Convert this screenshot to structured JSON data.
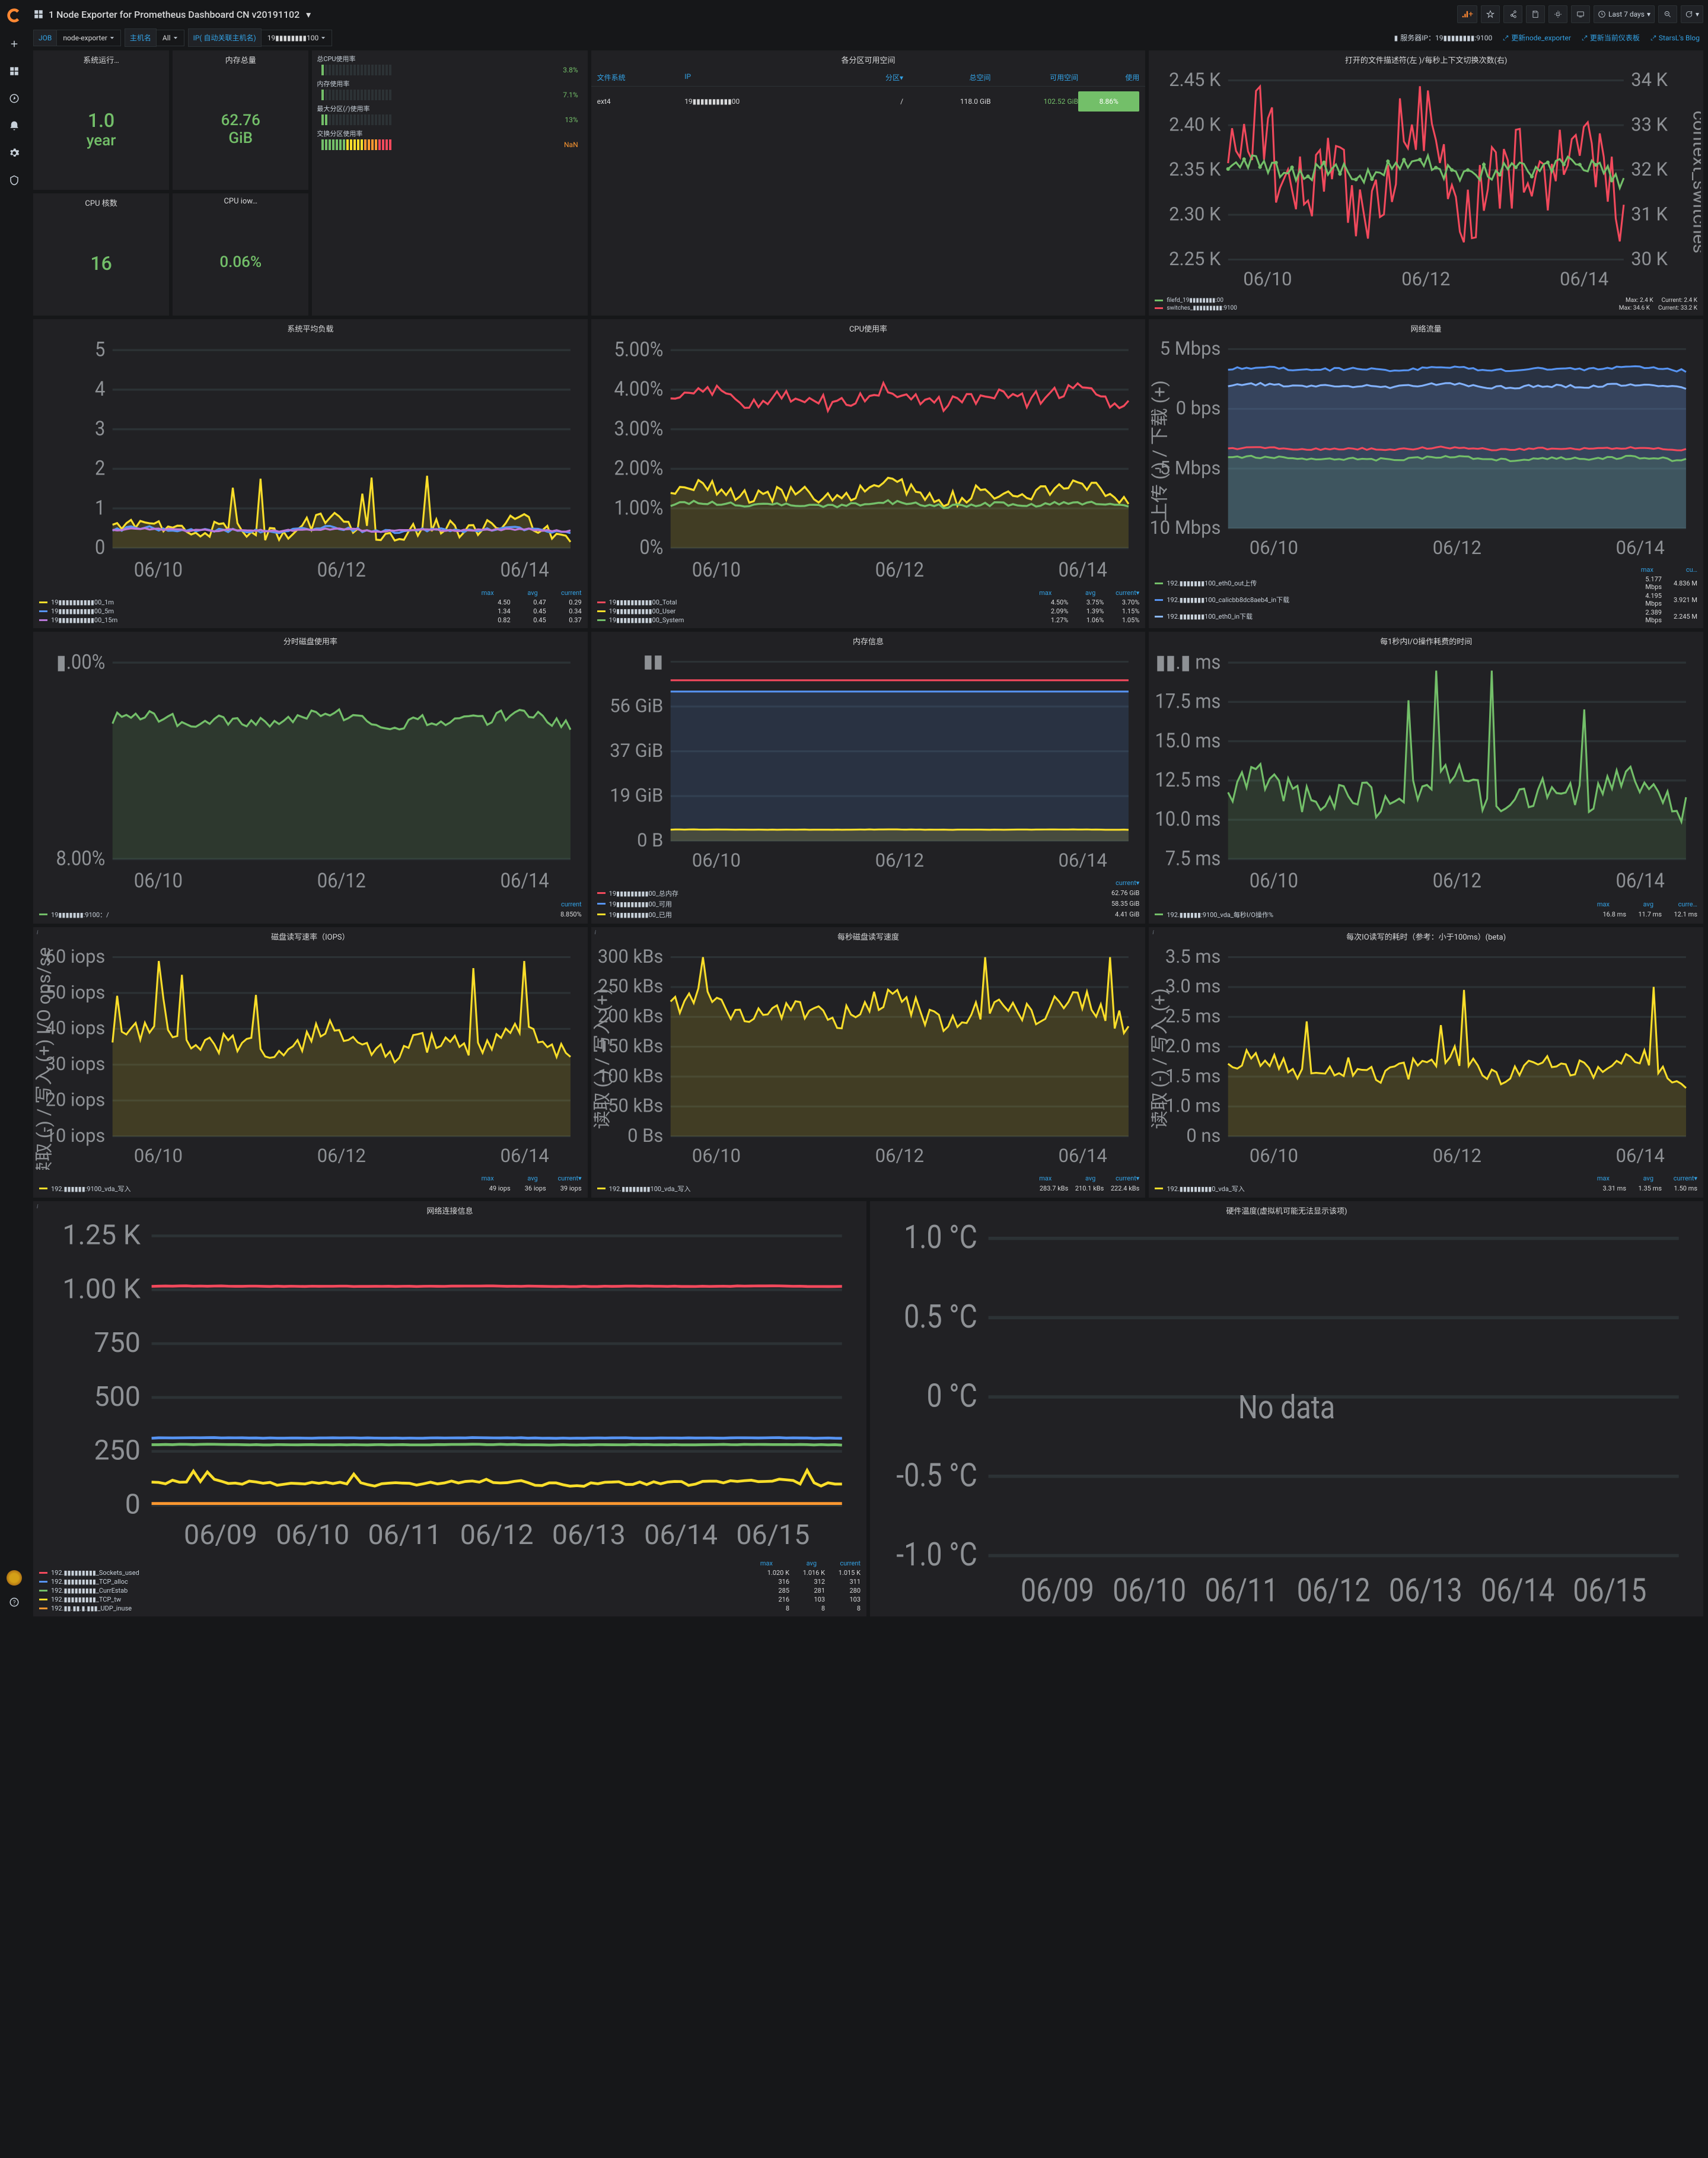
{
  "header": {
    "title": "1 Node Exporter for Prometheus Dashboard CN v20191102",
    "timeRange": "Last 7 days"
  },
  "vars": {
    "job": {
      "label": "JOB",
      "value": "node-exporter"
    },
    "host": {
      "label": "主机名",
      "value": "All"
    },
    "ip": {
      "label": "IP( 自动关联主机名)",
      "value": "19▮▮▮▮▮▮▮▮100"
    }
  },
  "links": {
    "serverIp": "服务器IP：19▮▮▮▮▮▮▮▮:9100",
    "l1": "更新node_exporter",
    "l2": "更新当前仪表板",
    "l3": "StarsL's Blog"
  },
  "stats": {
    "uptime": {
      "title": "系统运行…",
      "value": "1.0",
      "unit": "year"
    },
    "mem": {
      "title": "内存总量",
      "value": "62.76",
      "unit": "GiB"
    },
    "cpu": {
      "title": "CPU 核数",
      "value": "16"
    },
    "iowait": {
      "title": "CPU iow…",
      "value": "0.06%"
    }
  },
  "bargauges": [
    {
      "label": "总CPU使用率",
      "value": "3.8%",
      "fill": 1,
      "color": "green"
    },
    {
      "label": "内存使用率",
      "value": "7.1%",
      "fill": 1,
      "color": "green"
    },
    {
      "label": "最大分区(/)使用率",
      "value": "13%",
      "fill": 2,
      "color": "green"
    },
    {
      "label": "交换分区使用率",
      "value": "NaN",
      "fill": 20,
      "color": "multi"
    }
  ],
  "diskTable": {
    "title": "各分区可用空间",
    "headers": [
      "文件系统",
      "IP",
      "分区▾",
      "总空间",
      "可用空间",
      "使用"
    ],
    "row": {
      "fs": "ext4",
      "ip": "19▮▮▮▮▮▮▮▮▮▮00",
      "mount": "/",
      "total": "118.0 GiB",
      "avail": "102.52 GiB",
      "used": "8.86%"
    }
  },
  "fdPanel": {
    "title": "打开的文件描述符(左 )/每秒上下文切换次数(右)",
    "yleft": [
      "2.45 K",
      "2.40 K",
      "2.35 K",
      "2.30 K",
      "2.25 K"
    ],
    "yright": [
      "34 K",
      "33 K",
      "32 K",
      "31 K",
      "30 K"
    ],
    "xticks": [
      "06/10",
      "06/12",
      "06/14"
    ],
    "rightLabel": "context_switches",
    "legend": [
      {
        "c": "#73bf69",
        "name": "filefd_19▮▮▮▮▮▮▮▮:00",
        "max": "Max: 2.4 K",
        "cur": "Current: 2.4 K"
      },
      {
        "c": "#f2495c",
        "name": "switches_▮▮▮▮▮▮▮▮▮:9100",
        "max": "Max: 34.6 K",
        "cur": "Current: 33.2 K"
      }
    ]
  },
  "loadPanel": {
    "title": "系统平均负载",
    "yticks": [
      "5",
      "4",
      "3",
      "2",
      "1",
      "0"
    ],
    "xticks": [
      "06/10",
      "06/12",
      "06/14"
    ],
    "legend": [
      {
        "c": "#fade2a",
        "name": "19▮▮▮▮▮▮▮▮▮▮00_1m",
        "max": "4.50",
        "avg": "0.47",
        "cur": "0.29"
      },
      {
        "c": "#5794f2",
        "name": "19▮▮▮▮▮▮▮▮▮▮00_5m",
        "max": "1.34",
        "avg": "0.45",
        "cur": "0.34"
      },
      {
        "c": "#b877d9",
        "name": "19▮▮▮▮▮▮▮▮▮▮00_15m",
        "max": "0.82",
        "avg": "0.45",
        "cur": "0.37"
      }
    ]
  },
  "cpuPanel": {
    "title": "CPU使用率",
    "yticks": [
      "5.00%",
      "4.00%",
      "3.00%",
      "2.00%",
      "1.00%",
      "0%"
    ],
    "xticks": [
      "06/10",
      "06/12",
      "06/14"
    ],
    "legend": [
      {
        "c": "#f2495c",
        "name": "19▮▮▮▮▮▮▮▮▮▮00_Total",
        "max": "4.50%",
        "avg": "3.75%",
        "cur": "3.70%"
      },
      {
        "c": "#fade2a",
        "name": "19▮▮▮▮▮▮▮▮▮▮00_User",
        "max": "2.09%",
        "avg": "1.39%",
        "cur": "1.15%"
      },
      {
        "c": "#73bf69",
        "name": "19▮▮▮▮▮▮▮▮▮▮00_System",
        "max": "1.27%",
        "avg": "1.06%",
        "cur": "1.05%"
      }
    ]
  },
  "netPanel": {
    "title": "网络流量",
    "yticks": [
      "5 Mbps",
      "0 bps",
      "-5 Mbps",
      "-10 Mbps"
    ],
    "xticks": [
      "06/10",
      "06/12",
      "06/14"
    ],
    "ylabel": "上传 (-) / 下载 (+)",
    "legend": [
      {
        "c": "#73bf69",
        "name": "192.▮▮▮▮▮▮▮100_eth0_out上传",
        "max": "5.177 Mbps",
        "cur": "4.836 M"
      },
      {
        "c": "#5794f2",
        "name": "192.▮▮▮▮▮▮▮100_calicbb8dc8aeb4_in下载",
        "max": "4.195 Mbps",
        "cur": "3.921 M"
      },
      {
        "c": "#8ab8ff",
        "name": "192.▮▮▮▮▮▮▮100_eth0_in下载",
        "max": "2.389 Mbps",
        "cur": "2.245 M"
      }
    ]
  },
  "diskUsage": {
    "title": "分时磁盘使用率",
    "yticks": [
      "▮.00%",
      "8.00%"
    ],
    "xticks": [
      "06/10",
      "06/12",
      "06/14"
    ],
    "legend": [
      {
        "c": "#73bf69",
        "name": "19▮▮▮▮▮▮▮:9100：/",
        "cur": "8.850%"
      }
    ]
  },
  "memInfo": {
    "title": "内存信息",
    "yticks": [
      "▮▮",
      "56 GiB",
      "37 GiB",
      "19 GiB",
      "0 B"
    ],
    "xticks": [
      "06/10",
      "06/12",
      "06/14"
    ],
    "legend": [
      {
        "c": "#f2495c",
        "name": "19▮▮▮▮▮▮▮▮▮00_总内存",
        "cur": "62.76 GiB"
      },
      {
        "c": "#5794f2",
        "name": "19▮▮▮▮▮▮▮▮▮00_可用",
        "cur": "58.35 GiB"
      },
      {
        "c": "#fade2a",
        "name": "19▮▮▮▮▮▮▮▮▮00_已用",
        "cur": "4.41 GiB"
      }
    ]
  },
  "ioTime": {
    "title": "每1秒内I/O操作耗费的时间",
    "yticks": [
      "▮▮.▮ ms",
      "17.5 ms",
      "15.0 ms",
      "12.5 ms",
      "10.0 ms",
      "7.5 ms"
    ],
    "xticks": [
      "06/10",
      "06/12",
      "06/14"
    ],
    "legend": [
      {
        "c": "#73bf69",
        "name": "192.▮▮▮▮▮▮:9100_vda_每秒I/O操作%",
        "max": "16.8 ms",
        "avg": "11.7 ms",
        "cur": "12.1 ms"
      }
    ]
  },
  "iops": {
    "title": "磁盘读写速率（IOPS）",
    "yticks": [
      "60 iops",
      "50 iops",
      "40 iops",
      "30 iops",
      "20 iops",
      "10 iops"
    ],
    "xticks": [
      "06/10",
      "06/12",
      "06/14"
    ],
    "ylabel": "读取 (-) / 写入 (+) I/O ops/sec",
    "legend": [
      {
        "c": "#fade2a",
        "name": "192.▮▮▮▮▮▮:9100_vda_写入",
        "max": "49 iops",
        "avg": "36 iops",
        "cur": "39 iops"
      }
    ]
  },
  "diskRW": {
    "title": "每秒磁盘读写速度",
    "yticks": [
      "300 kBs",
      "250 kBs",
      "200 kBs",
      "150 kBs",
      "100 kBs",
      "50 kBs",
      "0 Bs"
    ],
    "xticks": [
      "06/10",
      "06/12",
      "06/14"
    ],
    "ylabel": "读取 (-) / 写入 (+)",
    "legend": [
      {
        "c": "#fade2a",
        "name": "192.▮▮▮▮▮▮▮▮100_vda_写入",
        "max": "283.7 kBs",
        "avg": "210.1 kBs",
        "cur": "222.4 kBs"
      }
    ]
  },
  "ioLatency": {
    "title": "每次IO读写的耗时（参考：小于100ms）(beta)",
    "yticks": [
      "3.5 ms",
      "3.0 ms",
      "2.5 ms",
      "2.0 ms",
      "1.5 ms",
      "1.0 ms",
      "0 ns"
    ],
    "xticks": [
      "06/10",
      "06/12",
      "06/14"
    ],
    "ylabel": "读取 (-) / 写入 (+)",
    "legend": [
      {
        "c": "#fade2a",
        "name": "192.▮▮▮▮▮▮▮▮▮0_vda_写入",
        "max": "3.31 ms",
        "avg": "1.35 ms",
        "cur": "1.50 ms"
      }
    ]
  },
  "netConn": {
    "title": "网络连接信息",
    "yticks": [
      "1.25 K",
      "1.00 K",
      "750",
      "500",
      "250",
      "0"
    ],
    "xticks": [
      "06/09",
      "06/10",
      "06/11",
      "06/12",
      "06/13",
      "06/14",
      "06/15"
    ],
    "legend": [
      {
        "c": "#f2495c",
        "name": "192.▮▮▮▮▮▮▮▮▮_Sockets_used",
        "max": "1.020 K",
        "avg": "1.016 K",
        "cur": "1.015 K"
      },
      {
        "c": "#5794f2",
        "name": "192.▮▮▮▮▮▮▮▮▮_TCP_alloc",
        "max": "316",
        "avg": "312",
        "cur": "311"
      },
      {
        "c": "#73bf69",
        "name": "192.▮▮▮▮▮▮▮▮▮_CurrEstab",
        "max": "285",
        "avg": "281",
        "cur": "280"
      },
      {
        "c": "#fade2a",
        "name": "192.▮▮▮▮▮▮▮▮▮_TCP_tw",
        "max": "216",
        "avg": "103",
        "cur": "103"
      },
      {
        "c": "#ff9830",
        "name": "192.▮▮.▮▮.▮.▮▮▮_UDP_inuse",
        "max": "8",
        "avg": "8",
        "cur": "8"
      }
    ]
  },
  "temp": {
    "title": "硬件温度(虚拟机可能无法显示该项)",
    "yticks": [
      "1.0 °C",
      "0.5 °C",
      "0 °C",
      "-0.5 °C",
      "-1.0 °C"
    ],
    "xticks": [
      "06/09",
      "06/10",
      "06/11",
      "06/12",
      "06/13",
      "06/14",
      "06/15"
    ],
    "nodata": "No data"
  },
  "cols": {
    "max": "max",
    "avg": "avg",
    "cur": "current▾",
    "current": "current"
  }
}
